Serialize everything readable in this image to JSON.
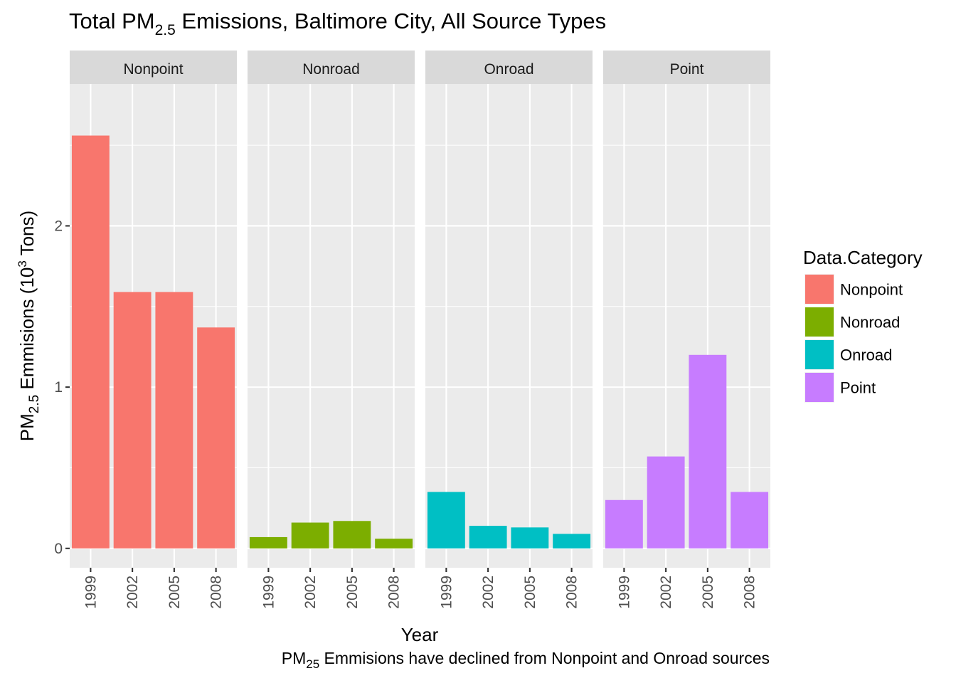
{
  "chart_data": {
    "type": "bar",
    "title": "Total PM2.5 Emissions, Baltimore City, All Source Types",
    "title_parts": {
      "pre": "Total PM",
      "sub": "2.5",
      "post": " Emissions, Baltimore City, All Source Types"
    },
    "xlabel": "Year",
    "ylabel": "PM2.5 Emmisions (10^3 Tons)",
    "ylabel_parts": {
      "pre": "PM",
      "sub": "2.5",
      "mid": " Emmisions (10",
      "sup": "3",
      "post": " Tons)"
    },
    "caption": "PM25 Emmisions have declined from Nonpoint and Onroad sources",
    "caption_parts": {
      "pre": "PM",
      "sub": "25",
      "post": " Emmisions have declined from Nonpoint and Onroad sources"
    },
    "categories": [
      "1999",
      "2002",
      "2005",
      "2008"
    ],
    "facets": [
      "Nonpoint",
      "Nonroad",
      "Onroad",
      "Point"
    ],
    "ylim": [
      -0.12,
      2.88
    ],
    "yticks": [
      0,
      1,
      2
    ],
    "grid": true,
    "legend": {
      "title": "Data.Category",
      "position": "right",
      "entries": [
        "Nonpoint",
        "Nonroad",
        "Onroad",
        "Point"
      ]
    },
    "colors": {
      "Nonpoint": "#F8766D",
      "Nonroad": "#7CAE00",
      "Onroad": "#00BFC4",
      "Point": "#C77CFF"
    },
    "series": [
      {
        "name": "Nonpoint",
        "values": [
          2.56,
          1.59,
          1.59,
          1.37
        ]
      },
      {
        "name": "Nonroad",
        "values": [
          0.07,
          0.16,
          0.17,
          0.06
        ]
      },
      {
        "name": "Onroad",
        "values": [
          0.35,
          0.14,
          0.13,
          0.09
        ]
      },
      {
        "name": "Point",
        "values": [
          0.3,
          0.57,
          1.2,
          0.35
        ]
      }
    ]
  }
}
